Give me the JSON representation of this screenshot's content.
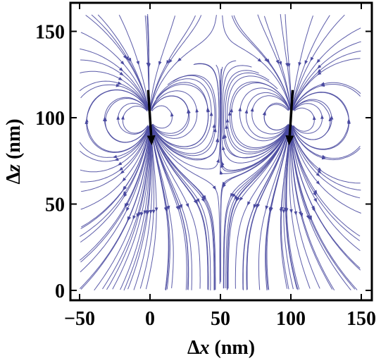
{
  "chart_data": {
    "type": "streamplot",
    "title": "",
    "xlabel": {
      "prefix": "Δ",
      "var": "x",
      "suffix": " (nm)"
    },
    "ylabel": {
      "prefix": "Δ",
      "var": "z",
      "suffix": " (nm)"
    },
    "xlim": [
      -50,
      150
    ],
    "ylim": [
      0,
      160
    ],
    "xticks": [
      -50,
      0,
      50,
      100,
      150
    ],
    "yticks": [
      0,
      50,
      100,
      150
    ],
    "xtick_labels": [
      "−50",
      "0",
      "50",
      "100",
      "150"
    ],
    "ytick_labels": [
      "0",
      "50",
      "100",
      "150"
    ],
    "grid": false,
    "stream_color": "#4a4aa0",
    "dipole_color": "#000000",
    "dipoles": [
      {
        "x": 0,
        "z": 100,
        "px": 0.08,
        "pz": -1
      },
      {
        "x": 100,
        "z": 100,
        "px": -0.08,
        "pz": -1
      }
    ]
  }
}
